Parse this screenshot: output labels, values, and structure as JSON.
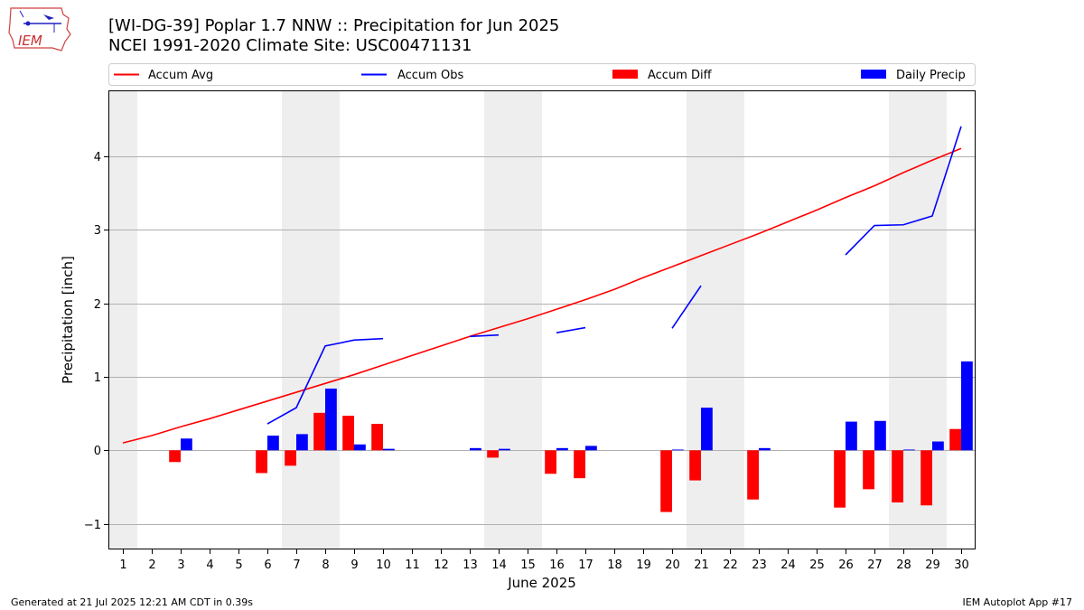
{
  "header": {
    "title_line1": "[WI-DG-39] Poplar 1.7 NNW :: Precipitation for Jun 2025",
    "title_line2": "NCEI 1991-2020 Climate Site: USC00471131",
    "logo_text": "IEM"
  },
  "footer": {
    "generated": "Generated at 21 Jul 2025 12:21 AM CDT in 0.39s",
    "app": "IEM Autoplot App #17"
  },
  "colors": {
    "avg": "#ff0000",
    "obs": "#0000ff",
    "diff": "#ff0000",
    "daily": "#0000ff",
    "weekend": "#eeeeee",
    "grid": "#b0b0b0"
  },
  "chart_data": {
    "type": "bar",
    "xlabel": "June 2025",
    "ylabel": "Precipitation [inch]",
    "ylim": [
      -1.35,
      4.9
    ],
    "yticks": [
      -1,
      0,
      1,
      2,
      3,
      4
    ],
    "grid": "horizontal",
    "legend_position": "top (above plot)",
    "categories": [
      "1",
      "2",
      "3",
      "4",
      "5",
      "6",
      "7",
      "8",
      "9",
      "10",
      "11",
      "12",
      "13",
      "14",
      "15",
      "16",
      "17",
      "18",
      "19",
      "20",
      "21",
      "22",
      "23",
      "24",
      "25",
      "26",
      "27",
      "28",
      "29",
      "30"
    ],
    "shaded_days": [
      1,
      7,
      8,
      14,
      15,
      21,
      22,
      28,
      29
    ],
    "legend": [
      {
        "label": "Accum Avg",
        "kind": "line",
        "color": "#ff0000"
      },
      {
        "label": "Accum Obs",
        "kind": "line",
        "color": "#0000ff"
      },
      {
        "label": "Accum Diff",
        "kind": "bar",
        "color": "#ff0000"
      },
      {
        "label": "Daily Precip",
        "kind": "bar",
        "color": "#0000ff"
      }
    ],
    "series": [
      {
        "name": "Accum Avg",
        "type": "line",
        "values": [
          0.1,
          0.2,
          0.32,
          0.43,
          0.55,
          0.67,
          0.79,
          0.91,
          1.03,
          1.16,
          1.29,
          1.42,
          1.55,
          1.67,
          1.79,
          1.92,
          2.05,
          2.19,
          2.35,
          2.5,
          2.65,
          2.8,
          2.95,
          3.11,
          3.27,
          3.44,
          3.6,
          3.78,
          3.95,
          4.11
        ]
      },
      {
        "name": "Accum Obs",
        "type": "line",
        "values": [
          null,
          null,
          null,
          null,
          null,
          0.36,
          0.58,
          1.42,
          1.5,
          1.52,
          null,
          null,
          1.55,
          1.57,
          null,
          1.6,
          1.67,
          null,
          null,
          1.66,
          2.24,
          null,
          null,
          null,
          null,
          2.66,
          3.06,
          3.07,
          3.19,
          4.41
        ]
      },
      {
        "name": "Accum Diff",
        "type": "bar",
        "values": [
          null,
          null,
          -0.16,
          null,
          null,
          -0.31,
          -0.21,
          0.51,
          0.47,
          0.36,
          null,
          null,
          null,
          -0.1,
          null,
          -0.32,
          -0.38,
          null,
          null,
          -0.84,
          -0.41,
          null,
          -0.67,
          null,
          null,
          -0.78,
          -0.53,
          -0.71,
          -0.75,
          0.29
        ]
      },
      {
        "name": "Daily Precip",
        "type": "bar",
        "values": [
          null,
          null,
          0.16,
          null,
          null,
          0.2,
          0.22,
          0.84,
          0.08,
          0.02,
          null,
          null,
          0.03,
          0.02,
          null,
          0.03,
          0.06,
          null,
          null,
          0.01,
          0.58,
          null,
          0.03,
          null,
          null,
          0.39,
          0.4,
          0.01,
          0.12,
          1.21
        ]
      }
    ]
  }
}
